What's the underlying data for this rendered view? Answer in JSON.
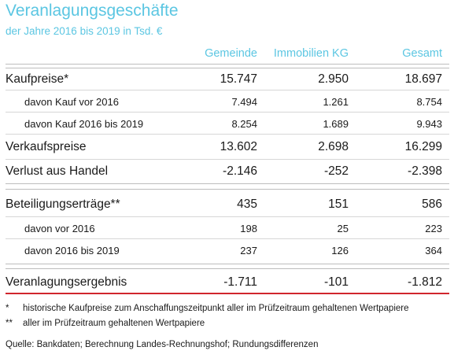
{
  "title": "Veranlagungsgeschäfte",
  "subtitle": "der Jahre 2016 bis 2019 in Tsd. €",
  "columns": [
    "Gemeinde",
    "Immobilien KG",
    "Gesamt"
  ],
  "rows": [
    {
      "label": "Kaufpreise*",
      "values": [
        "15.747",
        "2.950",
        "18.697"
      ]
    },
    {
      "label": "davon Kauf vor 2016",
      "values": [
        "7.494",
        "1.261",
        "8.754"
      ]
    },
    {
      "label": "davon Kauf 2016 bis 2019",
      "values": [
        "8.254",
        "1.689",
        "9.943"
      ]
    },
    {
      "label": "Verkaufspreise",
      "values": [
        "13.602",
        "2.698",
        "16.299"
      ]
    },
    {
      "label": "Verlust aus Handel",
      "values": [
        "-2.146",
        "-252",
        "-2.398"
      ]
    },
    {
      "label": "Beteiligungserträge**",
      "values": [
        "435",
        "151",
        "586"
      ]
    },
    {
      "label": "davon vor 2016",
      "values": [
        "198",
        "25",
        "223"
      ]
    },
    {
      "label": "davon 2016 bis 2019",
      "values": [
        "237",
        "126",
        "364"
      ]
    },
    {
      "label": "Veranlagungsergebnis",
      "values": [
        "-1.711",
        "-101",
        "-1.812"
      ]
    }
  ],
  "notes": [
    {
      "mark": "*",
      "text": "historische Kaufpreise zum Anschaffungszeitpunkt aller im Prüfzeitraum gehaltenen Wertpapiere"
    },
    {
      "mark": "**",
      "text": "aller im Prüfzeitraum gehaltenen Wertpapiere"
    }
  ],
  "source": "Quelle: Bankdaten; Berechnung Landes-Rechnungshof; Rundungsdifferenzen",
  "colors": {
    "accent": "#5bc6e2",
    "total_rule": "#d0262d",
    "rule": "#bdbdbd"
  }
}
